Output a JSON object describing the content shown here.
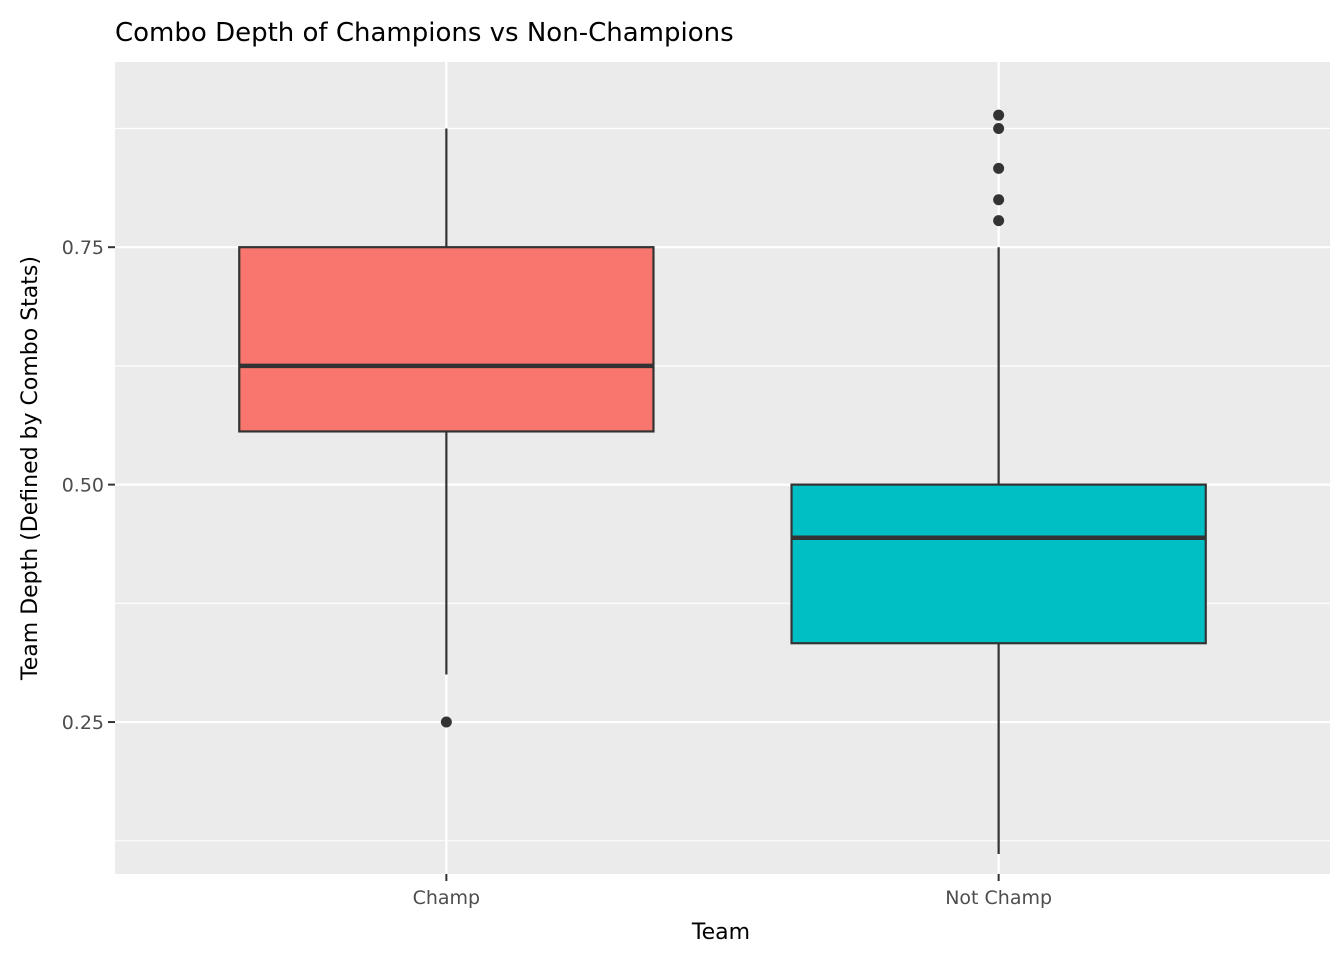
{
  "chart_data": {
    "type": "box",
    "title": "Combo Depth of Champions vs Non-Champions",
    "xlabel": "Team",
    "ylabel": "Team Depth (Defined by Combo Stats)",
    "ylim": [
      0.09,
      0.945
    ],
    "y_major_ticks": [
      0.25,
      0.5,
      0.75
    ],
    "y_tick_labels": [
      "0.25",
      "0.50",
      "0.75"
    ],
    "y_minor_gridlines": [
      0.125,
      0.375,
      0.625,
      0.875
    ],
    "grid": true,
    "legend": "none",
    "colors": {
      "panel_background": "#EBEBEB",
      "grid": "#FFFFFF",
      "box_outline": "#333333",
      "axis_text": "#4D4D4D",
      "title_text": "#000000"
    },
    "categories": [
      "Champ",
      "Not Champ"
    ],
    "boxes": [
      {
        "category": "Champ",
        "fill": "#F8766D",
        "whisker_low": 0.3,
        "q1": 0.556,
        "median": 0.625,
        "q3": 0.75,
        "whisker_high": 0.875,
        "outliers": [
          0.25
        ]
      },
      {
        "category": "Not Champ",
        "fill": "#00BFC4",
        "whisker_low": 0.111,
        "q1": 0.333,
        "median": 0.444,
        "q3": 0.5,
        "whisker_high": 0.75,
        "outliers": [
          0.778,
          0.8,
          0.833,
          0.875,
          0.889
        ]
      }
    ]
  }
}
